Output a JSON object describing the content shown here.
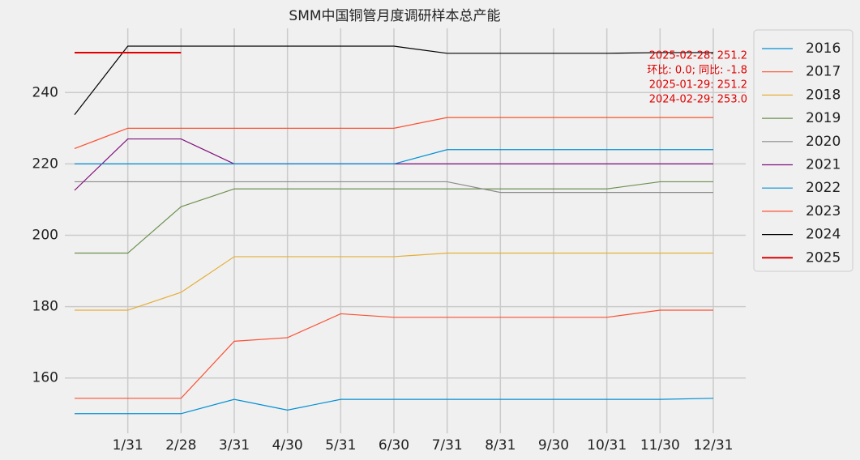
{
  "chart_data": {
    "type": "line",
    "title": "SMM中国铜管月度调研样本总产能",
    "categories": [
      null,
      "1/31",
      "2/28",
      "3/31",
      "4/30",
      "5/31",
      "6/30",
      "7/31",
      "8/31",
      "9/30",
      "10/31",
      "11/30",
      "12/31"
    ],
    "series": [
      {
        "name": "2016",
        "color": "#008fd5",
        "values": [
          150,
          150,
          150,
          154,
          151,
          154,
          154,
          154,
          154,
          154,
          154,
          154,
          154.3
        ]
      },
      {
        "name": "2017",
        "color": "#fc4f30",
        "values": [
          154.3,
          154.3,
          154.3,
          170.3,
          171.3,
          178,
          177,
          177,
          177,
          177,
          177,
          179,
          179
        ]
      },
      {
        "name": "2018",
        "color": "#e5ae38",
        "values": [
          179,
          179,
          184,
          194,
          194,
          194,
          194,
          195,
          195,
          195,
          195,
          195,
          195
        ]
      },
      {
        "name": "2019",
        "color": "#6d904f",
        "values": [
          195,
          195,
          208,
          213,
          213,
          213,
          213,
          213,
          213,
          213,
          213,
          215,
          215
        ]
      },
      {
        "name": "2020",
        "color": "#8b8b8b",
        "values": [
          215,
          215,
          215,
          215,
          215,
          215,
          215,
          215,
          212,
          212,
          212,
          212,
          212
        ]
      },
      {
        "name": "2021",
        "color": "#810f7c",
        "values": [
          212.6,
          227,
          227,
          220,
          220,
          220,
          220,
          220,
          220,
          220,
          220,
          220,
          220
        ]
      },
      {
        "name": "2022",
        "color": "#008fd5",
        "values": [
          220,
          220,
          220,
          220,
          220,
          220,
          220,
          224,
          224,
          224,
          224,
          224,
          224
        ]
      },
      {
        "name": "2023",
        "color": "#fc4f30",
        "values": [
          224.3,
          230,
          230,
          230,
          230,
          230,
          230,
          233,
          233,
          233,
          233,
          233,
          233
        ]
      },
      {
        "name": "2024",
        "color": "#000000",
        "values": [
          233.8,
          253,
          253,
          253,
          253,
          253,
          253,
          251,
          251,
          251,
          251,
          251.2,
          251.2
        ]
      },
      {
        "name": "2025",
        "color": "#e00000",
        "values": [
          251.2,
          251.2,
          251.2,
          null,
          null,
          null,
          null,
          null,
          null,
          null,
          null,
          null,
          null
        ]
      }
    ],
    "annotations": [
      "2025-02-28: 251.2",
      "环比: 0.0; 同比: -1.8",
      "2025-01-29: 251.2",
      "2024-02-29: 253.0"
    ],
    "ylim": [
      144.5,
      258
    ],
    "yticks": [
      160,
      180,
      200,
      220,
      240
    ],
    "grid": true,
    "legend": "upper right outside"
  }
}
